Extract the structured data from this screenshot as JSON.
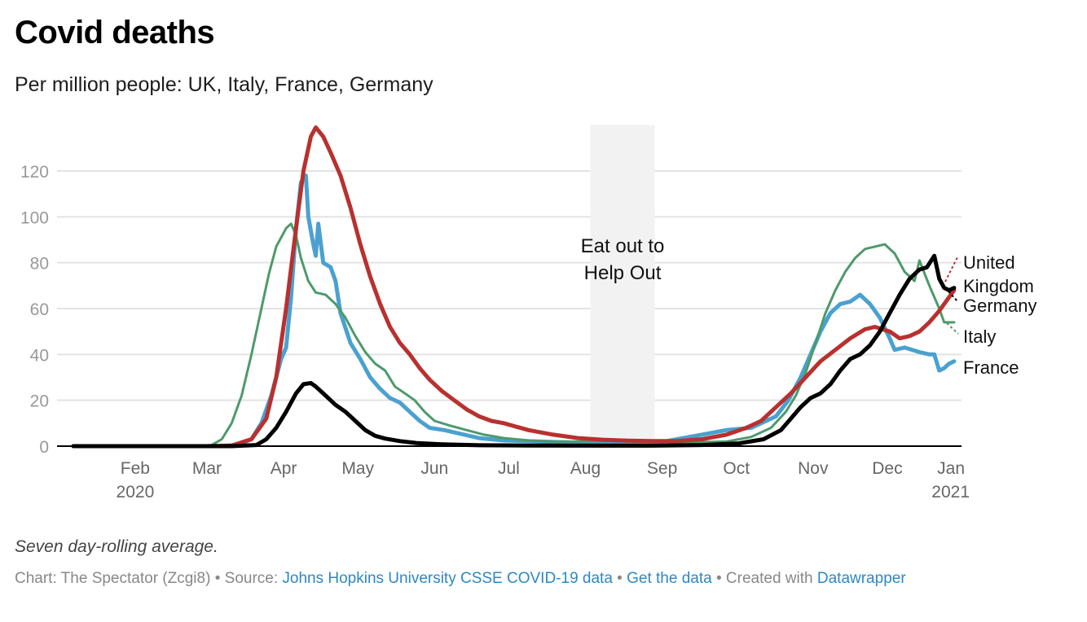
{
  "header": {
    "title": "Covid deaths",
    "subtitle": "Per million people: UK, Italy, France, Germany"
  },
  "footer": {
    "note": "Seven day-rolling average.",
    "chart_credit": "Chart: The Spectator (Zcgi8)",
    "sep": " • ",
    "source_prefix": "Source: ",
    "source_link": "Johns Hopkins University CSSE COVID-19 data",
    "get_data_link": "Get the data",
    "created_prefix": "Created with ",
    "datawrapper_link": "Datawrapper"
  },
  "chart_data": {
    "type": "line",
    "title": "Covid deaths",
    "subtitle": "Per million people: UK, Italy, France, Germany",
    "xlabel": "",
    "ylabel": "",
    "x_unit": "day of year 2020 (Jan 1 = 0)",
    "xlim": [
      6,
      365
    ],
    "ylim": [
      0,
      140
    ],
    "y_ticks": [
      0,
      20,
      40,
      60,
      80,
      100,
      120
    ],
    "grid": true,
    "x_ticks": [
      {
        "day": 31,
        "label": "Feb",
        "sub": "2020"
      },
      {
        "day": 60,
        "label": "Mar",
        "sub": ""
      },
      {
        "day": 91,
        "label": "Apr",
        "sub": ""
      },
      {
        "day": 121,
        "label": "May",
        "sub": ""
      },
      {
        "day": 152,
        "label": "Jun",
        "sub": ""
      },
      {
        "day": 182,
        "label": "Jul",
        "sub": ""
      },
      {
        "day": 213,
        "label": "Aug",
        "sub": ""
      },
      {
        "day": 244,
        "label": "Sep",
        "sub": ""
      },
      {
        "day": 274,
        "label": "Oct",
        "sub": ""
      },
      {
        "day": 305,
        "label": "Nov",
        "sub": ""
      },
      {
        "day": 335,
        "label": "Dec",
        "sub": ""
      },
      {
        "day": 366,
        "label": "Jan",
        "sub": "2021"
      }
    ],
    "annotation": {
      "label_line1": "Eat out to",
      "label_line2": "Help Out",
      "start_day": 215,
      "end_day": 241,
      "color": "#f2f2f2"
    },
    "series": [
      {
        "name": "United Kingdom",
        "label_lines": [
          "United",
          "Kingdom"
        ],
        "color": "#b8312f",
        "width": 5,
        "points": [
          [
            6,
            0
          ],
          [
            60,
            0
          ],
          [
            70,
            0.3
          ],
          [
            78,
            3
          ],
          [
            84,
            12
          ],
          [
            88,
            30
          ],
          [
            92,
            60
          ],
          [
            96,
            95
          ],
          [
            99,
            120
          ],
          [
            102,
            135
          ],
          [
            104,
            139
          ],
          [
            107,
            135
          ],
          [
            110,
            128
          ],
          [
            114,
            118
          ],
          [
            118,
            104
          ],
          [
            122,
            88
          ],
          [
            126,
            74
          ],
          [
            130,
            62
          ],
          [
            134,
            52
          ],
          [
            138,
            45
          ],
          [
            142,
            40
          ],
          [
            146,
            34
          ],
          [
            150,
            29
          ],
          [
            155,
            24
          ],
          [
            160,
            20
          ],
          [
            165,
            16
          ],
          [
            170,
            13
          ],
          [
            175,
            11
          ],
          [
            180,
            10
          ],
          [
            185,
            8.5
          ],
          [
            190,
            7
          ],
          [
            200,
            5
          ],
          [
            210,
            3.5
          ],
          [
            220,
            2.8
          ],
          [
            230,
            2.4
          ],
          [
            240,
            2.2
          ],
          [
            250,
            2.2
          ],
          [
            260,
            3
          ],
          [
            270,
            5
          ],
          [
            278,
            8
          ],
          [
            284,
            11
          ],
          [
            290,
            17
          ],
          [
            296,
            23
          ],
          [
            302,
            30
          ],
          [
            308,
            37
          ],
          [
            314,
            42
          ],
          [
            320,
            47
          ],
          [
            326,
            51
          ],
          [
            330,
            52
          ],
          [
            336,
            50
          ],
          [
            340,
            47
          ],
          [
            344,
            48
          ],
          [
            348,
            50
          ],
          [
            352,
            54
          ],
          [
            356,
            59
          ],
          [
            360,
            65
          ],
          [
            362,
            68
          ]
        ]
      },
      {
        "name": "Germany",
        "label_lines": [
          "Germany"
        ],
        "color": "#000000",
        "width": 5,
        "points": [
          [
            6,
            0
          ],
          [
            70,
            0
          ],
          [
            80,
            0.5
          ],
          [
            84,
            3
          ],
          [
            88,
            8
          ],
          [
            92,
            15
          ],
          [
            96,
            23
          ],
          [
            99,
            27
          ],
          [
            102,
            27.5
          ],
          [
            104,
            26
          ],
          [
            106,
            24
          ],
          [
            108,
            22
          ],
          [
            112,
            18
          ],
          [
            116,
            15
          ],
          [
            120,
            11
          ],
          [
            124,
            7
          ],
          [
            128,
            4.5
          ],
          [
            132,
            3.3
          ],
          [
            138,
            2.2
          ],
          [
            145,
            1.3
          ],
          [
            155,
            0.8
          ],
          [
            170,
            0.4
          ],
          [
            190,
            0.3
          ],
          [
            220,
            0.2
          ],
          [
            240,
            0.2
          ],
          [
            260,
            0.5
          ],
          [
            275,
            1.2
          ],
          [
            285,
            3
          ],
          [
            292,
            7
          ],
          [
            296,
            12
          ],
          [
            300,
            17
          ],
          [
            304,
            21
          ],
          [
            308,
            23
          ],
          [
            312,
            27
          ],
          [
            316,
            33
          ],
          [
            320,
            38
          ],
          [
            324,
            40
          ],
          [
            328,
            44
          ],
          [
            332,
            50
          ],
          [
            336,
            58
          ],
          [
            340,
            66
          ],
          [
            344,
            73
          ],
          [
            348,
            77
          ],
          [
            351,
            78
          ],
          [
            354,
            83
          ],
          [
            356,
            73
          ],
          [
            358,
            69
          ],
          [
            360,
            68
          ],
          [
            362,
            69
          ]
        ]
      },
      {
        "name": "Italy",
        "label_lines": [
          "Italy"
        ],
        "color": "#4d9a6b",
        "width": 3,
        "points": [
          [
            6,
            0
          ],
          [
            55,
            0
          ],
          [
            62,
            0.5
          ],
          [
            66,
            3
          ],
          [
            70,
            10
          ],
          [
            74,
            22
          ],
          [
            78,
            40
          ],
          [
            82,
            60
          ],
          [
            85,
            75
          ],
          [
            88,
            87
          ],
          [
            92,
            95
          ],
          [
            94,
            97
          ],
          [
            96,
            92
          ],
          [
            98,
            82
          ],
          [
            101,
            72
          ],
          [
            104,
            67
          ],
          [
            108,
            66
          ],
          [
            112,
            62
          ],
          [
            116,
            56
          ],
          [
            120,
            48
          ],
          [
            124,
            41
          ],
          [
            128,
            36
          ],
          [
            132,
            33
          ],
          [
            136,
            26
          ],
          [
            140,
            23
          ],
          [
            144,
            20
          ],
          [
            148,
            15
          ],
          [
            152,
            11
          ],
          [
            158,
            9
          ],
          [
            165,
            7
          ],
          [
            172,
            5
          ],
          [
            180,
            3.5
          ],
          [
            190,
            2.5
          ],
          [
            200,
            2
          ],
          [
            210,
            2
          ],
          [
            230,
            2.5
          ],
          [
            240,
            2
          ],
          [
            250,
            1.5
          ],
          [
            270,
            2
          ],
          [
            280,
            4
          ],
          [
            288,
            8
          ],
          [
            294,
            15
          ],
          [
            298,
            22
          ],
          [
            302,
            32
          ],
          [
            306,
            45
          ],
          [
            310,
            58
          ],
          [
            314,
            68
          ],
          [
            318,
            76
          ],
          [
            322,
            82
          ],
          [
            326,
            86
          ],
          [
            330,
            87
          ],
          [
            334,
            88
          ],
          [
            338,
            84
          ],
          [
            342,
            76
          ],
          [
            346,
            72
          ],
          [
            348,
            81
          ],
          [
            352,
            70
          ],
          [
            356,
            60
          ],
          [
            358,
            54
          ],
          [
            362,
            54
          ]
        ]
      },
      {
        "name": "France",
        "label_lines": [
          "France"
        ],
        "color": "#4aa1d0",
        "width": 5,
        "points": [
          [
            6,
            0
          ],
          [
            65,
            0
          ],
          [
            72,
            0.5
          ],
          [
            78,
            3
          ],
          [
            82,
            10
          ],
          [
            86,
            22
          ],
          [
            90,
            38
          ],
          [
            92,
            43
          ],
          [
            94,
            65
          ],
          [
            96,
            95
          ],
          [
            98,
            115
          ],
          [
            100,
            118
          ],
          [
            101,
            100
          ],
          [
            103,
            88
          ],
          [
            104,
            83
          ],
          [
            105,
            97
          ],
          [
            107,
            80
          ],
          [
            110,
            78
          ],
          [
            112,
            72
          ],
          [
            114,
            58
          ],
          [
            118,
            45
          ],
          [
            122,
            38
          ],
          [
            126,
            30
          ],
          [
            130,
            25
          ],
          [
            134,
            21
          ],
          [
            138,
            19
          ],
          [
            142,
            15
          ],
          [
            146,
            11
          ],
          [
            150,
            8
          ],
          [
            156,
            7
          ],
          [
            162,
            5.5
          ],
          [
            170,
            3.5
          ],
          [
            180,
            2.5
          ],
          [
            195,
            2
          ],
          [
            210,
            1.5
          ],
          [
            230,
            1
          ],
          [
            240,
            1
          ],
          [
            250,
            3
          ],
          [
            260,
            5
          ],
          [
            270,
            7
          ],
          [
            280,
            8
          ],
          [
            290,
            13
          ],
          [
            295,
            20
          ],
          [
            300,
            30
          ],
          [
            304,
            40
          ],
          [
            308,
            50
          ],
          [
            312,
            58
          ],
          [
            316,
            62
          ],
          [
            320,
            63
          ],
          [
            324,
            66
          ],
          [
            328,
            62
          ],
          [
            332,
            56
          ],
          [
            336,
            47
          ],
          [
            338,
            42
          ],
          [
            342,
            43
          ],
          [
            348,
            41
          ],
          [
            352,
            40
          ],
          [
            354,
            40
          ],
          [
            356,
            33
          ],
          [
            358,
            34
          ],
          [
            360,
            36
          ],
          [
            362,
            37
          ]
        ]
      }
    ],
    "end_labels_order": [
      "United Kingdom",
      "Germany",
      "Italy",
      "France"
    ]
  }
}
